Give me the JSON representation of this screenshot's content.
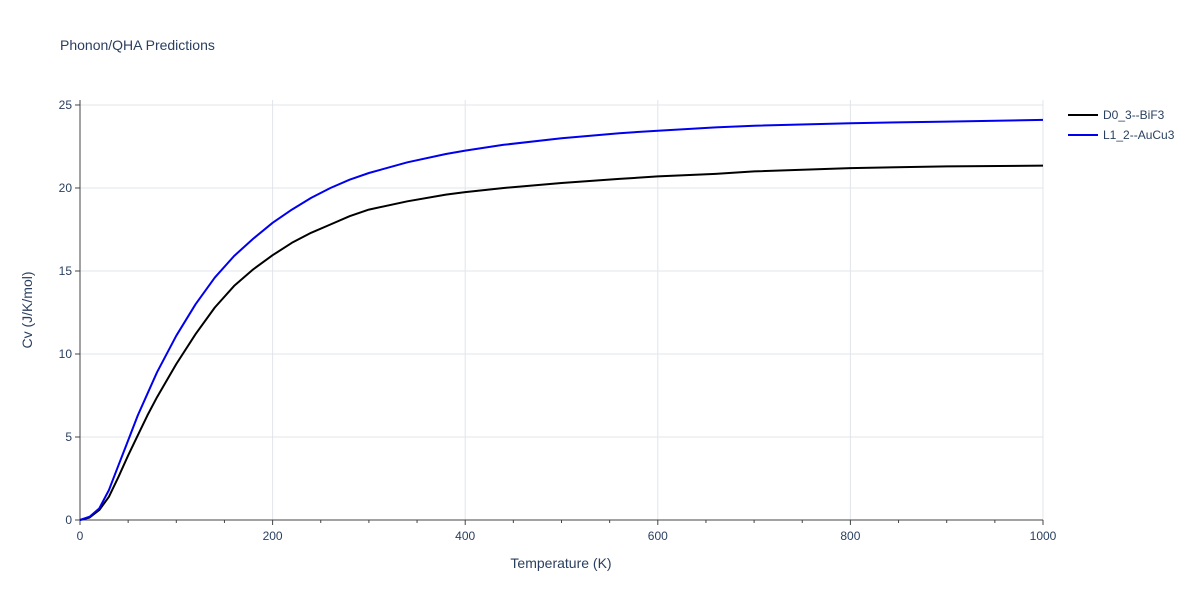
{
  "chart_data": {
    "type": "line",
    "title": "Phonon/QHA Predictions",
    "xlabel": "Temperature (K)",
    "ylabel": "Cv (J/K/mol)",
    "xlim": [
      0,
      1000
    ],
    "ylim": [
      0,
      25.3
    ],
    "xticks": [
      0,
      200,
      400,
      600,
      800,
      1000
    ],
    "yticks": [
      0,
      5,
      10,
      15,
      20,
      25
    ],
    "grid": true,
    "legend_position": "top-right",
    "series": [
      {
        "name": "D0_3--BiF3",
        "color": "#000000",
        "x": [
          0,
          10,
          20,
          30,
          40,
          50,
          60,
          70,
          80,
          100,
          120,
          140,
          160,
          180,
          200,
          220,
          240,
          260,
          280,
          300,
          340,
          380,
          400,
          440,
          500,
          560,
          600,
          660,
          700,
          800,
          900,
          1000
        ],
        "y": [
          0,
          0.15,
          0.6,
          1.4,
          2.6,
          3.9,
          5.1,
          6.3,
          7.4,
          9.4,
          11.2,
          12.8,
          14.1,
          15.1,
          15.95,
          16.7,
          17.3,
          17.8,
          18.3,
          18.7,
          19.2,
          19.6,
          19.75,
          20.0,
          20.3,
          20.55,
          20.7,
          20.85,
          21.0,
          21.2,
          21.3,
          21.35
        ]
      },
      {
        "name": "L1_2--AuCu3",
        "color": "#0000ee",
        "x": [
          0,
          10,
          20,
          30,
          40,
          50,
          60,
          70,
          80,
          100,
          120,
          140,
          160,
          180,
          200,
          220,
          240,
          260,
          280,
          300,
          340,
          380,
          400,
          440,
          500,
          560,
          600,
          660,
          700,
          800,
          900,
          1000
        ],
        "y": [
          0,
          0.2,
          0.7,
          1.8,
          3.3,
          4.8,
          6.3,
          7.6,
          8.9,
          11.1,
          13.0,
          14.6,
          15.9,
          16.95,
          17.9,
          18.7,
          19.4,
          20.0,
          20.5,
          20.9,
          21.55,
          22.05,
          22.25,
          22.6,
          23.0,
          23.3,
          23.45,
          23.65,
          23.75,
          23.9,
          24.0,
          24.1
        ]
      }
    ]
  }
}
